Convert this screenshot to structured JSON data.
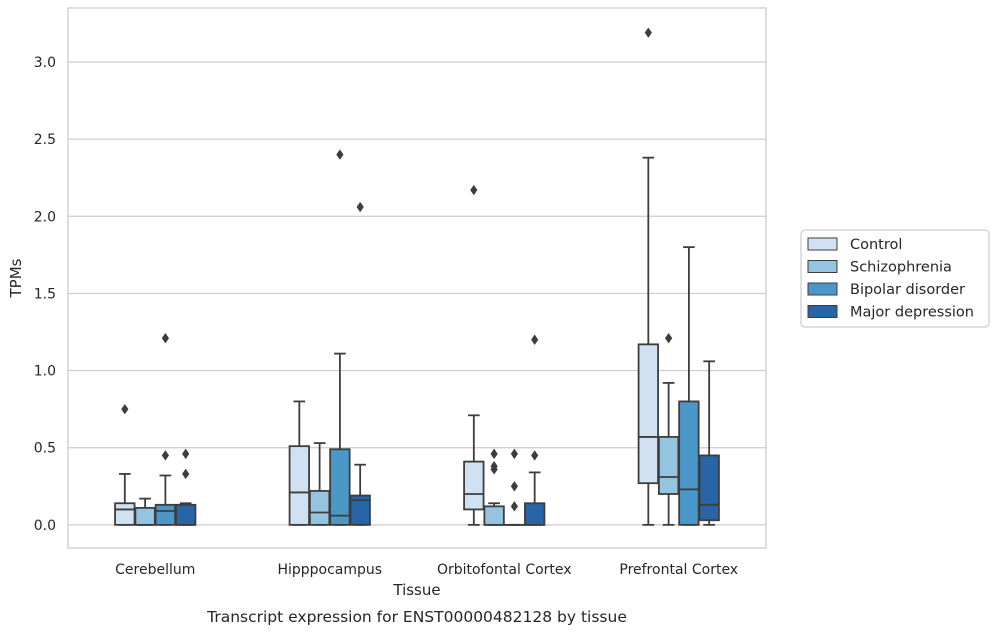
{
  "chart_data": {
    "type": "boxplot",
    "xlabel": "Tissue",
    "ylabel": "TPMs",
    "caption": "Transcript expression for ENST00000482128 by tissue",
    "ylim": [
      -0.15,
      3.35
    ],
    "yticks": [
      "0.0",
      "0.5",
      "1.0",
      "1.5",
      "2.0",
      "2.5",
      "3.0"
    ],
    "grid": "horizontal",
    "legend_position": "right",
    "categories": [
      "Cerebellum",
      "Hipppocampus",
      "Orbitofontal Cortex",
      "Prefrontal Cortex"
    ],
    "series": [
      {
        "name": "Control",
        "color": "#d0e1f2",
        "boxes": [
          {
            "q1": 0.0,
            "median": 0.1,
            "q3": 0.14,
            "whislo": 0.0,
            "whishi": 0.33,
            "fliers": [
              0.75
            ]
          },
          {
            "q1": 0.0,
            "median": 0.21,
            "q3": 0.51,
            "whislo": 0.0,
            "whishi": 0.8,
            "fliers": []
          },
          {
            "q1": 0.1,
            "median": 0.2,
            "q3": 0.41,
            "whislo": 0.0,
            "whishi": 0.71,
            "fliers": [
              2.17
            ]
          },
          {
            "q1": 0.27,
            "median": 0.57,
            "q3": 1.17,
            "whislo": 0.0,
            "whishi": 2.38,
            "fliers": [
              3.19
            ]
          }
        ]
      },
      {
        "name": "Schizophrenia",
        "color": "#94c4df",
        "boxes": [
          {
            "q1": 0.0,
            "median": 0.0,
            "q3": 0.11,
            "whislo": 0.0,
            "whishi": 0.17,
            "fliers": []
          },
          {
            "q1": 0.0,
            "median": 0.08,
            "q3": 0.22,
            "whislo": 0.0,
            "whishi": 0.53,
            "fliers": []
          },
          {
            "q1": 0.0,
            "median": 0.0,
            "q3": 0.12,
            "whislo": 0.0,
            "whishi": 0.14,
            "fliers": [
              0.36,
              0.38,
              0.46
            ]
          },
          {
            "q1": 0.2,
            "median": 0.31,
            "q3": 0.57,
            "whislo": 0.0,
            "whishi": 0.92,
            "fliers": [
              1.21
            ]
          }
        ]
      },
      {
        "name": "Bipolar disorder",
        "color": "#4a98c9",
        "boxes": [
          {
            "q1": 0.0,
            "median": 0.09,
            "q3": 0.13,
            "whislo": 0.0,
            "whishi": 0.32,
            "fliers": [
              0.45,
              1.21
            ]
          },
          {
            "q1": 0.0,
            "median": 0.06,
            "q3": 0.49,
            "whislo": 0.0,
            "whishi": 1.11,
            "fliers": [
              2.4
            ]
          },
          {
            "q1": 0.0,
            "median": 0.0,
            "q3": 0.0,
            "whislo": 0.0,
            "whishi": 0.0,
            "fliers": [
              0.12,
              0.25,
              0.46
            ]
          },
          {
            "q1": 0.0,
            "median": 0.23,
            "q3": 0.8,
            "whislo": 0.0,
            "whishi": 1.8,
            "fliers": []
          }
        ]
      },
      {
        "name": "Major depression",
        "color": "#2764a8",
        "boxes": [
          {
            "q1": 0.0,
            "median": 0.0,
            "q3": 0.13,
            "whislo": 0.0,
            "whishi": 0.14,
            "fliers": [
              0.33,
              0.46
            ]
          },
          {
            "q1": 0.0,
            "median": 0.16,
            "q3": 0.19,
            "whislo": 0.0,
            "whishi": 0.39,
            "fliers": [
              2.06
            ]
          },
          {
            "q1": 0.0,
            "median": 0.0,
            "q3": 0.14,
            "whislo": 0.0,
            "whishi": 0.34,
            "fliers": [
              0.45,
              1.2
            ]
          },
          {
            "q1": 0.03,
            "median": 0.13,
            "q3": 0.45,
            "whislo": 0.0,
            "whishi": 1.06,
            "fliers": []
          }
        ]
      }
    ]
  }
}
